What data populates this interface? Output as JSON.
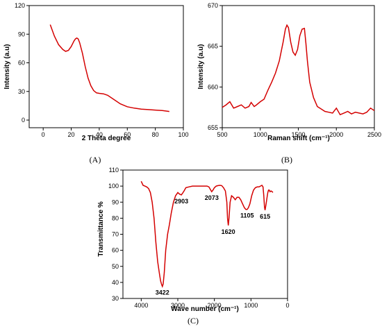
{
  "colors": {
    "series": "#d40000",
    "axis": "#000000"
  },
  "chart_data": [
    {
      "type": "line",
      "panel_label": "(A)",
      "xlabel": "2 Theta degree",
      "ylabel": "Intensity (a.u)",
      "xlim": [
        -10,
        100
      ],
      "ylim": [
        -8,
        120
      ],
      "xticks": [
        0,
        20,
        40,
        60,
        80,
        100
      ],
      "yticks": [
        0,
        30,
        60,
        90,
        120
      ],
      "series": [
        {
          "x": [
            5,
            8,
            11,
            14,
            16,
            18,
            20,
            22,
            23,
            24,
            25,
            26,
            28,
            30,
            32,
            34,
            36,
            38,
            40,
            43,
            46,
            50,
            55,
            60,
            65,
            70,
            75,
            80,
            85,
            90
          ],
          "y": [
            100,
            88,
            79,
            74,
            72,
            73,
            77,
            83,
            85,
            86,
            85,
            81,
            70,
            56,
            44,
            36,
            31,
            28.5,
            28,
            27.5,
            26,
            22,
            17,
            14,
            12.5,
            11.5,
            11,
            10.5,
            10,
            9
          ]
        }
      ]
    },
    {
      "type": "line",
      "panel_label": "(B)",
      "xlabel": "Raman shift (cm⁻¹)",
      "ylabel": "Intensity (a.u)",
      "xlim": [
        500,
        2500
      ],
      "ylim": [
        655,
        670
      ],
      "xticks": [
        500,
        1000,
        1500,
        2000,
        2500
      ],
      "yticks": [
        655,
        660,
        665,
        670
      ],
      "series": [
        {
          "x": [
            500,
            550,
            600,
            650,
            700,
            750,
            800,
            850,
            880,
            920,
            950,
            1000,
            1050,
            1100,
            1150,
            1200,
            1250,
            1300,
            1330,
            1350,
            1370,
            1400,
            1430,
            1460,
            1490,
            1520,
            1550,
            1580,
            1600,
            1620,
            1650,
            1700,
            1750,
            1800,
            1850,
            1900,
            1950,
            2000,
            2050,
            2100,
            2150,
            2200,
            2250,
            2300,
            2350,
            2400,
            2450,
            2500
          ],
          "y": [
            657.5,
            657.8,
            658.2,
            657.4,
            657.6,
            657.8,
            657.4,
            657.6,
            658.1,
            657.6,
            657.8,
            658.2,
            658.5,
            659.6,
            660.6,
            661.7,
            663.2,
            665.5,
            667.1,
            667.6,
            667.3,
            665.5,
            664.3,
            663.9,
            664.6,
            666.3,
            667.1,
            667.2,
            665.4,
            663.2,
            660.6,
            658.7,
            657.6,
            657.3,
            657.0,
            656.9,
            656.8,
            657.4,
            656.6,
            656.8,
            657.0,
            656.7,
            656.9,
            656.8,
            656.7,
            656.9,
            657.4,
            657.1
          ]
        }
      ]
    },
    {
      "type": "line",
      "panel_label": "(C)",
      "xlabel": "Wave number (cm⁻¹)",
      "ylabel": "Transmittance %",
      "xlim": [
        4500,
        0
      ],
      "ylim": [
        30,
        110
      ],
      "xticks": [
        4000,
        3000,
        2000,
        1000,
        0
      ],
      "yticks": [
        30,
        40,
        50,
        60,
        70,
        80,
        90,
        100,
        110
      ],
      "series": [
        {
          "x": [
            4000,
            3950,
            3900,
            3850,
            3800,
            3750,
            3700,
            3650,
            3600,
            3550,
            3500,
            3470,
            3440,
            3422,
            3400,
            3370,
            3330,
            3280,
            3230,
            3180,
            3120,
            3060,
            3000,
            2950,
            2903,
            2870,
            2830,
            2780,
            2700,
            2600,
            2500,
            2400,
            2300,
            2200,
            2150,
            2100,
            2073,
            2040,
            2000,
            1950,
            1900,
            1850,
            1800,
            1750,
            1700,
            1660,
            1640,
            1620,
            1600,
            1570,
            1530,
            1480,
            1430,
            1380,
            1330,
            1280,
            1230,
            1180,
            1140,
            1105,
            1070,
            1030,
            980,
            930,
            880,
            830,
            780,
            740,
            700,
            670,
            650,
            630,
            615,
            600,
            580,
            560,
            540,
            520,
            500,
            480,
            450,
            420,
            400
          ],
          "y": [
            103,
            100.5,
            100,
            99.5,
            98.5,
            96,
            90,
            80,
            65,
            53,
            45,
            41,
            38.5,
            37.5,
            39,
            46,
            60,
            70,
            76,
            83,
            90,
            94,
            96,
            95,
            94.5,
            95.5,
            97,
            99,
            99.5,
            100,
            100,
            100,
            100,
            100,
            99.5,
            97.5,
            96.5,
            97.5,
            99,
            100,
            100.3,
            100.5,
            100.3,
            99,
            97,
            90,
            80,
            75.5,
            80,
            90,
            94,
            93,
            91.5,
            93,
            93,
            91.5,
            89,
            86.5,
            85.5,
            85.5,
            86.5,
            89,
            94,
            97.5,
            99,
            99.5,
            99.5,
            100,
            100.5,
            99.5,
            94,
            87,
            85,
            87,
            90,
            93,
            96,
            97.5,
            97.5,
            96.5,
            97,
            96.5,
            96
          ]
        }
      ],
      "annotations": [
        {
          "text": "3422",
          "x": 3422,
          "y": 37.5
        },
        {
          "text": "2903",
          "x": 2903,
          "y": 94.5
        },
        {
          "text": "2073",
          "x": 2073,
          "y": 96.5
        },
        {
          "text": "1620",
          "x": 1620,
          "y": 75.5
        },
        {
          "text": "1105",
          "x": 1105,
          "y": 85.5
        },
        {
          "text": "615",
          "x": 615,
          "y": 85
        }
      ]
    }
  ]
}
